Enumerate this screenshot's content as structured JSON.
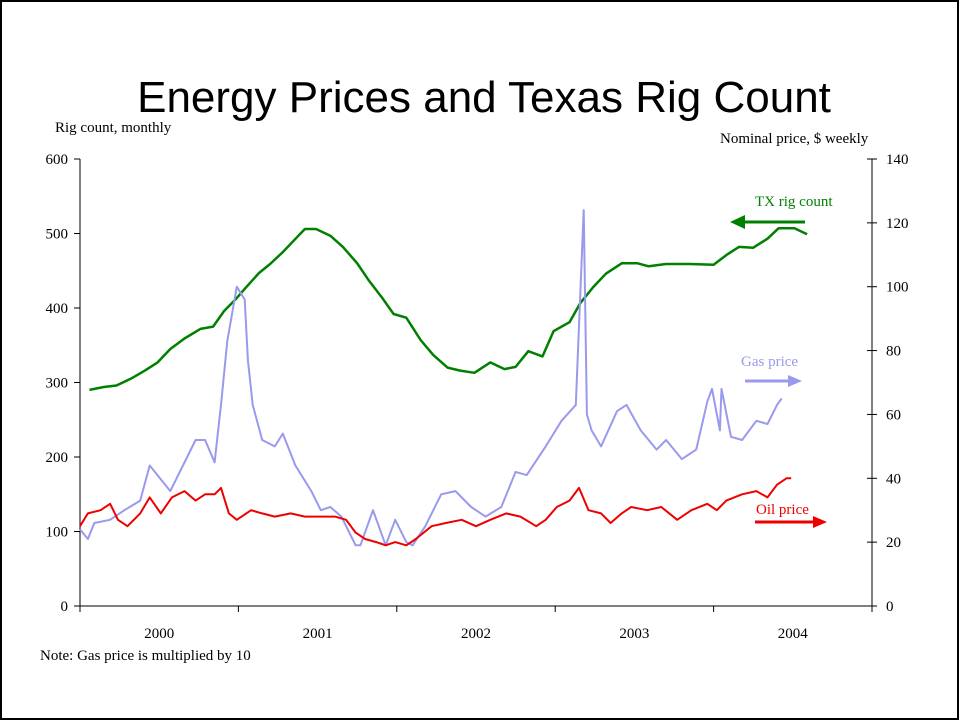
{
  "chart_data": {
    "type": "line",
    "title": "Energy Prices and Texas Rig Count",
    "y_label": "Rig count, monthly",
    "y2_label": "Nominal price, $ weekly",
    "note": "Note: Gas price is multiplied by 10",
    "xlim": [
      2000,
      2005
    ],
    "xticks": [
      2000,
      2001,
      2002,
      2003,
      2004
    ],
    "ylim": [
      0,
      600
    ],
    "yticks": [
      0,
      100,
      200,
      300,
      400,
      500,
      600
    ],
    "y2lim": [
      0,
      140
    ],
    "y2ticks": [
      0,
      20,
      40,
      60,
      80,
      100,
      120,
      140
    ],
    "grid": false,
    "series": [
      {
        "name": "TX rig count",
        "color": "#008000",
        "x": [
          2000.06,
          2000.15,
          2000.23,
          2000.32,
          2000.41,
          2000.49,
          2000.57,
          2000.66,
          2000.76,
          2000.84,
          2000.91,
          2000.98,
          2001.05,
          2001.13,
          2001.2,
          2001.28,
          2001.37,
          2001.42,
          2001.49,
          2001.58,
          2001.66,
          2001.75,
          2001.82,
          2001.91,
          2001.98,
          2002.06,
          2002.15,
          2002.23,
          2002.32,
          2002.4,
          2002.49,
          2002.59,
          2002.68,
          2002.75,
          2002.83,
          2002.92,
          2002.99,
          2003.09,
          2003.16,
          2003.24,
          2003.32,
          2003.42,
          2003.52,
          2003.59,
          2003.7,
          2003.85,
          2004.0,
          2004.08,
          2004.16,
          2004.25,
          2004.34,
          2004.41,
          2004.51,
          2004.59
        ],
        "values": [
          290,
          294,
          296,
          305,
          316,
          327,
          345,
          359,
          372,
          375,
          396,
          411,
          428,
          447,
          459,
          475,
          495,
          506,
          506,
          497,
          482,
          460,
          438,
          413,
          392,
          387,
          357,
          337,
          320,
          316,
          313,
          327,
          318,
          321,
          342,
          335,
          369,
          381,
          407,
          428,
          446,
          460,
          460,
          456,
          459,
          459,
          458,
          471,
          482,
          481,
          493,
          507,
          507,
          499
        ]
      },
      {
        "name": "Gas price",
        "color": "#9999ee",
        "axis": "y2",
        "x": [
          2000.0,
          2000.05,
          2000.09,
          2000.19,
          2000.28,
          2000.38,
          2000.44,
          2000.57,
          2000.73,
          2000.79,
          2000.85,
          2000.89,
          2000.93,
          2000.99,
          2001.04,
          2001.06,
          2001.09,
          2001.15,
          2001.23,
          2001.28,
          2001.36,
          2001.46,
          2001.52,
          2001.58,
          2001.65,
          2001.74,
          2001.77,
          2001.85,
          2001.93,
          2001.99,
          2002.06,
          2002.1,
          2002.18,
          2002.28,
          2002.37,
          2002.47,
          2002.56,
          2002.66,
          2002.75,
          2002.82,
          2002.94,
          2003.04,
          2003.13,
          2003.18,
          2003.2,
          2003.23,
          2003.29,
          2003.39,
          2003.45,
          2003.54,
          2003.64,
          2003.7,
          2003.8,
          2003.89,
          2003.96,
          2003.99,
          2004.04,
          2004.05,
          2004.11,
          2004.18,
          2004.27,
          2004.34,
          2004.4,
          2004.43
        ],
        "values": [
          24,
          21,
          26,
          27,
          30,
          33,
          44,
          36,
          52,
          52,
          45,
          63,
          83,
          100,
          96,
          77,
          63,
          52,
          50,
          54,
          44,
          36,
          30,
          31,
          28,
          19,
          19,
          30,
          19,
          27,
          20,
          19,
          25,
          35,
          36,
          31,
          28,
          31,
          42,
          41,
          50,
          58,
          63,
          124,
          60,
          55,
          50,
          61,
          63,
          55,
          49,
          52,
          46,
          49,
          64,
          68,
          55,
          68,
          53,
          52,
          58,
          57,
          63,
          65
        ]
      },
      {
        "name": "Oil price",
        "color": "#ee0000",
        "axis": "y2",
        "x": [
          2000.0,
          2000.05,
          2000.13,
          2000.19,
          2000.24,
          2000.3,
          2000.38,
          2000.44,
          2000.51,
          2000.58,
          2000.66,
          2000.73,
          2000.79,
          2000.85,
          2000.89,
          2000.94,
          2000.99,
          2001.08,
          2001.15,
          2001.23,
          2001.33,
          2001.42,
          2001.52,
          2001.61,
          2001.68,
          2001.74,
          2001.8,
          2001.87,
          2001.93,
          2001.99,
          2002.06,
          2002.12,
          2002.22,
          2002.31,
          2002.41,
          2002.5,
          2002.59,
          2002.69,
          2002.78,
          2002.88,
          2002.94,
          2003.01,
          2003.09,
          2003.15,
          2003.21,
          2003.29,
          2003.35,
          2003.42,
          2003.48,
          2003.58,
          2003.67,
          2003.77,
          2003.86,
          2003.96,
          2004.02,
          2004.08,
          2004.18,
          2004.27,
          2004.34,
          2004.4,
          2004.46,
          2004.49
        ],
        "values": [
          25,
          29,
          30,
          32,
          27,
          25,
          29,
          34,
          29,
          34,
          36,
          33,
          35,
          35,
          37,
          29,
          27,
          30,
          29,
          28,
          29,
          28,
          28,
          28,
          27,
          23,
          21,
          20,
          19,
          20,
          19,
          21,
          25,
          26,
          27,
          25,
          27,
          29,
          28,
          25,
          27,
          31,
          33,
          37,
          30,
          29,
          26,
          29,
          31,
          30,
          31,
          27,
          30,
          32,
          30,
          33,
          35,
          36,
          34,
          38,
          40,
          40
        ]
      }
    ]
  }
}
